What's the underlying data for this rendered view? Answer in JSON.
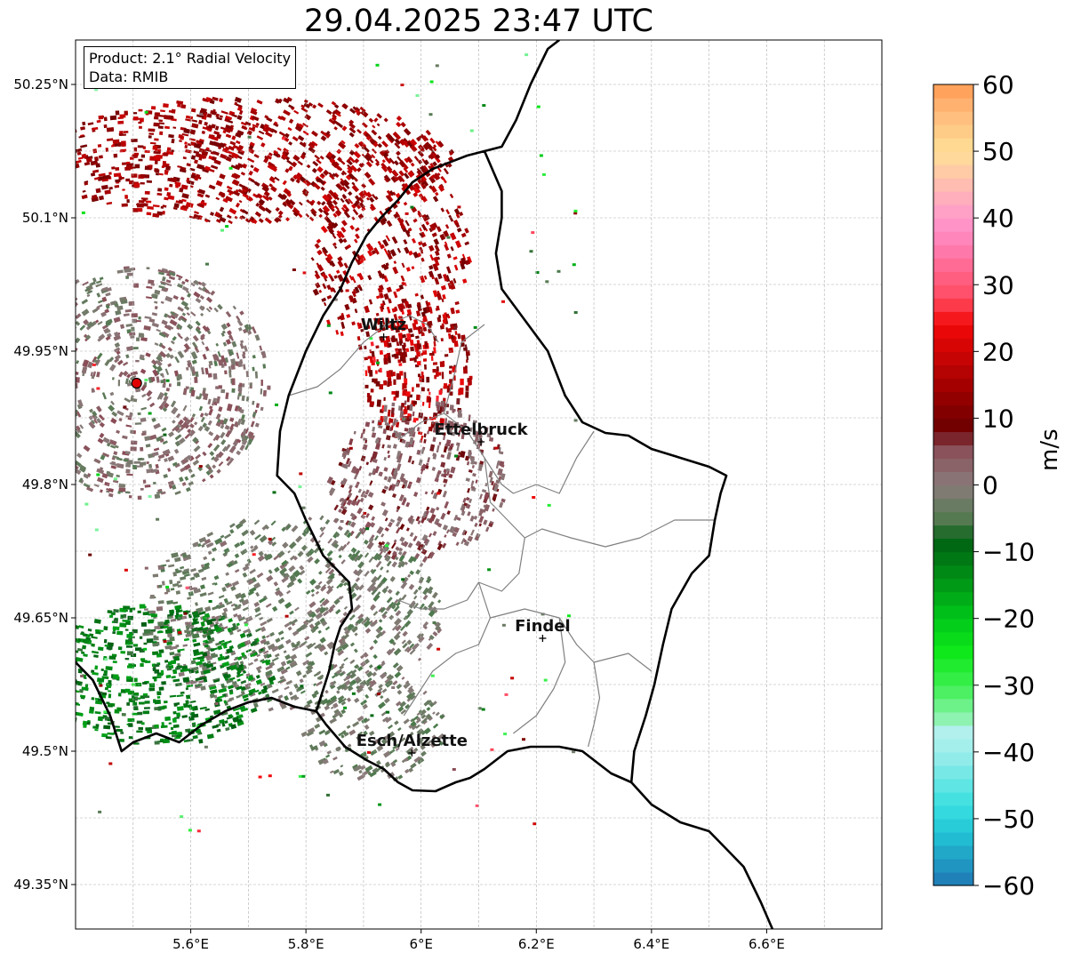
{
  "title": "29.04.2025 23:47 UTC",
  "info": {
    "product": "Product: 2.1° Radial Velocity",
    "data": "Data: RMIB"
  },
  "colorbar": {
    "label": "m/s",
    "min": -60,
    "max": 60,
    "ticks": [
      {
        "value": 60,
        "label": "60"
      },
      {
        "value": 50,
        "label": "50"
      },
      {
        "value": 40,
        "label": "40"
      },
      {
        "value": 30,
        "label": "30"
      },
      {
        "value": 20,
        "label": "20"
      },
      {
        "value": 10,
        "label": "10"
      },
      {
        "value": 0,
        "label": "0"
      },
      {
        "value": -10,
        "label": "−10"
      },
      {
        "value": -20,
        "label": "−20"
      },
      {
        "value": -30,
        "label": "−30"
      },
      {
        "value": -40,
        "label": "−40"
      },
      {
        "value": -50,
        "label": "−50"
      },
      {
        "value": -60,
        "label": "−60"
      }
    ],
    "stops": [
      {
        "value": -60,
        "color": "#1f77b4"
      },
      {
        "value": -52,
        "color": "#22c6d6"
      },
      {
        "value": -48,
        "color": "#38dfe0"
      },
      {
        "value": -40,
        "color": "#9eeeea"
      },
      {
        "value": -36,
        "color": "#b7f0ee"
      },
      {
        "value": -35,
        "color": "#8ef2b0"
      },
      {
        "value": -30,
        "color": "#3cf04f"
      },
      {
        "value": -25,
        "color": "#0fe81a"
      },
      {
        "value": -20,
        "color": "#00c81a"
      },
      {
        "value": -15,
        "color": "#009a16"
      },
      {
        "value": -8,
        "color": "#005e12"
      },
      {
        "value": -6,
        "color": "#4a7a4a"
      },
      {
        "value": 0,
        "color": "#8a7b7b"
      },
      {
        "value": 6,
        "color": "#8a4a55"
      },
      {
        "value": 8,
        "color": "#6a0000"
      },
      {
        "value": 15,
        "color": "#a40000"
      },
      {
        "value": 24,
        "color": "#f20808"
      },
      {
        "value": 28,
        "color": "#ff4a60"
      },
      {
        "value": 36,
        "color": "#ff7fb5"
      },
      {
        "value": 40,
        "color": "#ff9acd"
      },
      {
        "value": 44,
        "color": "#ffb5b5"
      },
      {
        "value": 50,
        "color": "#ffe096"
      },
      {
        "value": 56,
        "color": "#ffb87a"
      },
      {
        "value": 60,
        "color": "#ff9a50"
      }
    ]
  },
  "map": {
    "lon_range": [
      5.4,
      6.8
    ],
    "lat_range": [
      49.3,
      50.3
    ],
    "lon_ticks": [
      {
        "value": 5.6,
        "label": "5.6°E"
      },
      {
        "value": 5.8,
        "label": "5.8°E"
      },
      {
        "value": 6.0,
        "label": "6°E"
      },
      {
        "value": 6.2,
        "label": "6.2°E"
      },
      {
        "value": 6.4,
        "label": "6.4°E"
      },
      {
        "value": 6.6,
        "label": "6.6°E"
      }
    ],
    "lat_ticks": [
      {
        "value": 50.25,
        "label": "50.25°N"
      },
      {
        "value": 50.1,
        "label": "50.1°N"
      },
      {
        "value": 49.95,
        "label": "49.95°N"
      },
      {
        "value": 49.8,
        "label": "49.8°N"
      },
      {
        "value": 49.65,
        "label": "49.65°N"
      },
      {
        "value": 49.5,
        "label": "49.5°N"
      },
      {
        "value": 49.35,
        "label": "49.35°N"
      }
    ],
    "grid": true,
    "radar_site": {
      "lon": 5.506,
      "lat": 49.914
    },
    "cities": [
      {
        "name": "Wiltz",
        "lon": 5.935,
        "lat": 49.966
      },
      {
        "name": "Ettelbruck",
        "lon": 6.104,
        "lat": 49.848
      },
      {
        "name": "Findel",
        "lon": 6.211,
        "lat": 49.627
      },
      {
        "name": "Esch/Alzette",
        "lon": 5.984,
        "lat": 49.498
      }
    ],
    "border_lux": [
      [
        5.818,
        49.545
      ],
      [
        5.835,
        49.53
      ],
      [
        5.868,
        49.505
      ],
      [
        5.905,
        49.49
      ],
      [
        5.935,
        49.48
      ],
      [
        5.96,
        49.465
      ],
      [
        5.985,
        49.456
      ],
      [
        6.025,
        49.455
      ],
      [
        6.06,
        49.465
      ],
      [
        6.085,
        49.47
      ],
      [
        6.11,
        49.48
      ],
      [
        6.15,
        49.5
      ],
      [
        6.19,
        49.505
      ],
      [
        6.24,
        49.505
      ],
      [
        6.28,
        49.5
      ],
      [
        6.33,
        49.475
      ],
      [
        6.365,
        49.465
      ],
      [
        6.37,
        49.5
      ],
      [
        6.39,
        49.54
      ],
      [
        6.405,
        49.575
      ],
      [
        6.42,
        49.62
      ],
      [
        6.435,
        49.66
      ],
      [
        6.47,
        49.7
      ],
      [
        6.5,
        49.72
      ],
      [
        6.51,
        49.76
      ],
      [
        6.52,
        49.79
      ],
      [
        6.53,
        49.81
      ],
      [
        6.5,
        49.82
      ],
      [
        6.45,
        49.83
      ],
      [
        6.4,
        49.84
      ],
      [
        6.36,
        49.855
      ],
      [
        6.32,
        49.858
      ],
      [
        6.28,
        49.87
      ],
      [
        6.25,
        49.9
      ],
      [
        6.22,
        49.95
      ],
      [
        6.18,
        49.985
      ],
      [
        6.14,
        50.02
      ],
      [
        6.13,
        50.06
      ],
      [
        6.14,
        50.1
      ],
      [
        6.14,
        50.13
      ],
      [
        6.11,
        50.175
      ],
      [
        6.08,
        50.17
      ],
      [
        6.02,
        50.155
      ],
      [
        5.985,
        50.14
      ],
      [
        5.96,
        50.12
      ],
      [
        5.93,
        50.1
      ],
      [
        5.905,
        50.08
      ],
      [
        5.88,
        50.05
      ],
      [
        5.86,
        50.02
      ],
      [
        5.83,
        49.99
      ],
      [
        5.8,
        49.95
      ],
      [
        5.77,
        49.9
      ],
      [
        5.755,
        49.86
      ],
      [
        5.75,
        49.81
      ],
      [
        5.78,
        49.79
      ],
      [
        5.8,
        49.76
      ],
      [
        5.83,
        49.72
      ],
      [
        5.875,
        49.69
      ],
      [
        5.88,
        49.66
      ],
      [
        5.86,
        49.64
      ],
      [
        5.85,
        49.62
      ],
      [
        5.84,
        49.59
      ],
      [
        5.818,
        49.545
      ]
    ],
    "border_east": [
      [
        6.365,
        49.465
      ],
      [
        6.4,
        49.44
      ],
      [
        6.45,
        49.42
      ],
      [
        6.5,
        49.41
      ],
      [
        6.53,
        49.39
      ],
      [
        6.56,
        49.37
      ],
      [
        6.59,
        49.33
      ],
      [
        6.61,
        49.3
      ]
    ],
    "border_north": [
      [
        6.11,
        50.175
      ],
      [
        6.14,
        50.18
      ],
      [
        6.165,
        50.21
      ],
      [
        6.19,
        50.25
      ],
      [
        6.22,
        50.29
      ],
      [
        6.24,
        50.3
      ]
    ],
    "border_west": [
      [
        5.4,
        49.6
      ],
      [
        5.43,
        49.58
      ],
      [
        5.46,
        49.54
      ],
      [
        5.48,
        49.5
      ],
      [
        5.5,
        49.51
      ],
      [
        5.54,
        49.52
      ],
      [
        5.58,
        49.51
      ],
      [
        5.62,
        49.53
      ],
      [
        5.66,
        49.545
      ],
      [
        5.7,
        49.555
      ],
      [
        5.74,
        49.56
      ],
      [
        5.78,
        49.55
      ],
      [
        5.818,
        49.545
      ]
    ],
    "cantons": [
      [
        [
          5.96,
          49.85
        ],
        [
          6.0,
          49.87
        ],
        [
          6.04,
          49.88
        ],
        [
          6.06,
          49.93
        ],
        [
          6.07,
          49.96
        ],
        [
          6.11,
          49.98
        ]
      ],
      [
        [
          6.04,
          49.88
        ],
        [
          6.08,
          49.86
        ],
        [
          6.11,
          49.83
        ],
        [
          6.14,
          49.8
        ],
        [
          6.16,
          49.79
        ],
        [
          6.2,
          49.8
        ],
        [
          6.24,
          49.79
        ],
        [
          6.27,
          49.83
        ],
        [
          6.3,
          49.86
        ]
      ],
      [
        [
          6.11,
          49.83
        ],
        [
          6.12,
          49.78
        ],
        [
          6.15,
          49.76
        ],
        [
          6.18,
          49.74
        ],
        [
          6.21,
          49.75
        ],
        [
          6.26,
          49.74
        ],
        [
          6.32,
          49.73
        ],
        [
          6.38,
          49.74
        ],
        [
          6.44,
          49.76
        ],
        [
          6.51,
          49.76
        ]
      ],
      [
        [
          6.18,
          49.74
        ],
        [
          6.17,
          49.7
        ],
        [
          6.14,
          49.68
        ],
        [
          6.1,
          49.69
        ],
        [
          6.08,
          49.67
        ],
        [
          6.04,
          49.66
        ],
        [
          6.0,
          49.66
        ],
        [
          5.96,
          49.67
        ]
      ],
      [
        [
          6.1,
          49.69
        ],
        [
          6.12,
          49.65
        ],
        [
          6.18,
          49.66
        ],
        [
          6.24,
          49.65
        ],
        [
          6.27,
          49.62
        ],
        [
          6.3,
          49.6
        ],
        [
          6.36,
          49.61
        ],
        [
          6.4,
          49.59
        ]
      ],
      [
        [
          6.12,
          49.65
        ],
        [
          6.1,
          49.62
        ],
        [
          6.06,
          49.61
        ],
        [
          6.02,
          49.59
        ],
        [
          5.99,
          49.56
        ],
        [
          5.97,
          49.54
        ]
      ],
      [
        [
          6.24,
          49.65
        ],
        [
          6.25,
          49.6
        ],
        [
          6.23,
          49.57
        ],
        [
          6.2,
          49.54
        ],
        [
          6.16,
          49.52
        ]
      ],
      [
        [
          6.3,
          49.6
        ],
        [
          6.31,
          49.56
        ],
        [
          6.3,
          49.53
        ],
        [
          6.29,
          49.505
        ]
      ],
      [
        [
          5.77,
          49.9
        ],
        [
          5.82,
          49.91
        ],
        [
          5.86,
          49.93
        ],
        [
          5.9,
          49.96
        ],
        [
          5.94,
          49.98
        ],
        [
          5.98,
          49.99
        ],
        [
          6.01,
          49.98
        ],
        [
          6.03,
          49.96
        ]
      ]
    ]
  }
}
